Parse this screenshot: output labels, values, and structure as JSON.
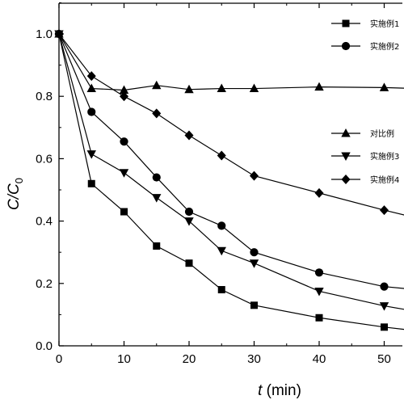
{
  "chart_data": {
    "type": "line",
    "xlabel_var": "t",
    "xlabel_unit": "(min)",
    "ylabel_main": "C/C",
    "ylabel_sub": "0",
    "xlim": [
      0,
      55
    ],
    "ylim": [
      0,
      1.1
    ],
    "x_ticks": [
      0,
      10,
      20,
      30,
      40,
      50
    ],
    "y_ticks": [
      0.0,
      0.2,
      0.4,
      0.6,
      0.8,
      1.0
    ],
    "x_tick_labels": [
      "0",
      "10",
      "20",
      "30",
      "40",
      "50"
    ],
    "y_tick_labels": [
      "0.0",
      "0.2",
      "0.4",
      "0.6",
      "0.8",
      "1.0"
    ],
    "grid": false,
    "series": [
      {
        "name": "实施例1",
        "marker": "square",
        "x": [
          0,
          5,
          10,
          15,
          20,
          25,
          30,
          40,
          50,
          55
        ],
        "y": [
          1.0,
          0.52,
          0.43,
          0.32,
          0.265,
          0.18,
          0.13,
          0.09,
          0.06,
          0.048
        ]
      },
      {
        "name": "实施例2",
        "marker": "circle",
        "x": [
          0,
          5,
          10,
          15,
          20,
          25,
          30,
          40,
          50,
          55
        ],
        "y": [
          1.0,
          0.75,
          0.655,
          0.54,
          0.43,
          0.385,
          0.3,
          0.235,
          0.19,
          0.18
        ]
      },
      {
        "name": "对比例",
        "marker": "triangle-up",
        "x": [
          0,
          5,
          10,
          15,
          20,
          25,
          30,
          40,
          50,
          55
        ],
        "y": [
          1.0,
          0.825,
          0.82,
          0.835,
          0.822,
          0.825,
          0.825,
          0.83,
          0.828,
          0.825
        ]
      },
      {
        "name": "实施例3",
        "marker": "triangle-down",
        "x": [
          0,
          5,
          10,
          15,
          20,
          25,
          30,
          40,
          50,
          55
        ],
        "y": [
          1.0,
          0.615,
          0.555,
          0.475,
          0.4,
          0.305,
          0.265,
          0.175,
          0.128,
          0.11
        ]
      },
      {
        "name": "实施例4",
        "marker": "diamond",
        "x": [
          0,
          5,
          10,
          15,
          20,
          25,
          30,
          40,
          50,
          55
        ],
        "y": [
          1.0,
          0.865,
          0.8,
          0.745,
          0.675,
          0.61,
          0.545,
          0.49,
          0.435,
          0.41
        ]
      }
    ],
    "legends": [
      {
        "position": "top-right",
        "entries": [
          "实施例1",
          "实施例2"
        ]
      },
      {
        "position": "middle-right",
        "entries": [
          "对比例",
          "实施例3",
          "实施例4"
        ]
      }
    ]
  }
}
